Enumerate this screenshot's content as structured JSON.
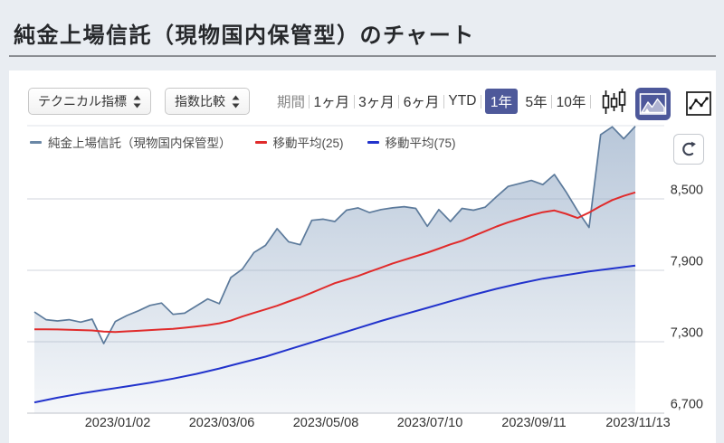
{
  "header": {
    "title": "純金上場信託（現物国内保管型）のチャート"
  },
  "toolbar": {
    "dropdowns": [
      {
        "label": "テクニカル指標"
      },
      {
        "label": "指数比較"
      }
    ],
    "period_label": "期間",
    "periods": [
      {
        "label": "1ヶ月",
        "selected": false
      },
      {
        "label": "3ヶ月",
        "selected": false
      },
      {
        "label": "6ヶ月",
        "selected": false
      },
      {
        "label": "YTD",
        "selected": false
      },
      {
        "label": "1年",
        "selected": true
      },
      {
        "label": "5年",
        "selected": false
      },
      {
        "label": "10年",
        "selected": false
      }
    ],
    "chart_type_buttons": [
      {
        "name": "candlestick-chart",
        "selected": false
      },
      {
        "name": "area-chart",
        "selected": true
      },
      {
        "name": "line-chart",
        "selected": false
      }
    ],
    "selected_color": "#4e599a"
  },
  "legend": [
    {
      "label": "純金上場信託（現物国内保管型）",
      "color": "#6a87a6"
    },
    {
      "label": "移動平均(25)",
      "color": "#e02b2b"
    },
    {
      "label": "移動平均(75)",
      "color": "#2233cc"
    }
  ],
  "chart_data": {
    "type": "area",
    "title": "純金上場信託（現物国内保管型） 1年チャート",
    "x_tick_labels": [
      "2023/01/02",
      "2023/03/06",
      "2023/05/08",
      "2023/07/10",
      "2023/09/11",
      "2023/11/13"
    ],
    "y_ticks": [
      {
        "value": 8500,
        "label": "8,500"
      },
      {
        "value": 7900,
        "label": "7,900"
      },
      {
        "value": 7300,
        "label": "7,300"
      },
      {
        "value": 6700,
        "label": "6,700"
      }
    ],
    "ylim": [
      6700,
      9120
    ],
    "series": [
      {
        "name": "純金上場信託（現物国内保管型）",
        "type": "area",
        "color": "#5c7a9b",
        "fill": "#96acc7",
        "values": [
          7550,
          7485,
          7475,
          7485,
          7465,
          7490,
          7285,
          7470,
          7520,
          7560,
          7605,
          7625,
          7530,
          7540,
          7600,
          7660,
          7620,
          7840,
          7910,
          8050,
          8110,
          8250,
          8140,
          8115,
          8320,
          8330,
          8310,
          8405,
          8425,
          8385,
          8410,
          8425,
          8435,
          8420,
          8270,
          8410,
          8310,
          8420,
          8405,
          8430,
          8520,
          8605,
          8630,
          8655,
          8620,
          8705,
          8560,
          8400,
          8260,
          9040,
          9105,
          9005,
          9110
        ]
      },
      {
        "name": "移動平均(25)",
        "type": "line",
        "color": "#e02b2b",
        "values": [
          7405,
          7405,
          7403,
          7400,
          7398,
          7395,
          7385,
          7382,
          7387,
          7392,
          7398,
          7403,
          7408,
          7418,
          7428,
          7440,
          7455,
          7478,
          7512,
          7542,
          7572,
          7602,
          7638,
          7672,
          7712,
          7752,
          7792,
          7822,
          7852,
          7888,
          7922,
          7958,
          7988,
          8018,
          8048,
          8082,
          8118,
          8148,
          8188,
          8228,
          8268,
          8303,
          8333,
          8363,
          8388,
          8403,
          8375,
          8340,
          8385,
          8440,
          8490,
          8525,
          8555
        ]
      },
      {
        "name": "移動平均(75)",
        "type": "line",
        "color": "#2233cc",
        "values": [
          6790,
          6830,
          6865,
          6895,
          6925,
          6955,
          6990,
          7030,
          7075,
          7125,
          7175,
          7235,
          7295,
          7355,
          7415,
          7475,
          7530,
          7585,
          7640,
          7695,
          7745,
          7790,
          7830,
          7860,
          7890,
          7915,
          7940
        ]
      }
    ]
  }
}
